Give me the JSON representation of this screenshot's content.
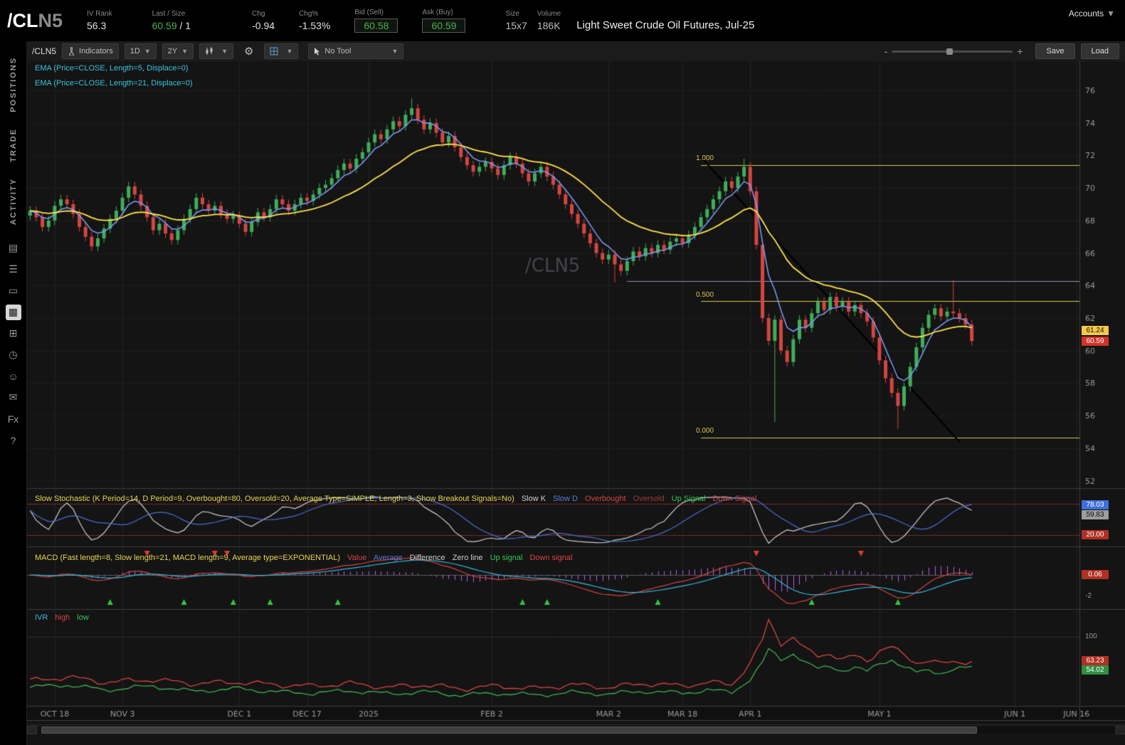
{
  "header": {
    "symbol_main": "/CL",
    "symbol_sub": "N5",
    "iv_rank_label": "IV Rank",
    "iv_rank": "56.3",
    "last_label": "Last / Size",
    "last": "60.59",
    "last_size": "/ 1",
    "chg_label": "Chg",
    "chg": "-0.94",
    "chgp_label": "Chg%",
    "chgp": "-1.53%",
    "bid_label": "Bid (Sell)",
    "bid": "60.58",
    "ask_label": "Ask (Buy)",
    "ask": "60.59",
    "size_label": "Size",
    "size": "15x7",
    "vol_label": "Volume",
    "volume": "186K",
    "description": "Light Sweet Crude Oil Futures, Jul-25",
    "accounts": "Accounts"
  },
  "sidebar": {
    "tabs": [
      {
        "label": "POSITIONS"
      },
      {
        "label": "TRADE"
      },
      {
        "label": "ACTIVITY"
      }
    ],
    "icons": [
      {
        "name": "scan-icon",
        "glyph": "▤"
      },
      {
        "name": "watchlist-icon",
        "glyph": "☰"
      },
      {
        "name": "tv-icon",
        "glyph": "▭"
      },
      {
        "name": "charts-icon",
        "glyph": "▦"
      },
      {
        "name": "widgets-icon",
        "glyph": "⊞"
      },
      {
        "name": "history-icon",
        "glyph": "◷"
      },
      {
        "name": "community-icon",
        "glyph": "☺"
      },
      {
        "name": "messages-icon",
        "glyph": "✉"
      },
      {
        "name": "forex-icon",
        "glyph": "Fx"
      },
      {
        "name": "help-icon",
        "glyph": "?"
      }
    ]
  },
  "toolbar": {
    "symbol": "/CLN5",
    "indicators": "Indicators",
    "timeframe": "1D",
    "range": "2Y",
    "tool": "No Tool",
    "zoom_minus": "-",
    "zoom_plus": "+",
    "save": "Save",
    "load": "Load"
  },
  "chart_data": {
    "type": "candlestick",
    "symbol": "/CLN5",
    "watermark": "/CLN5",
    "colors": {
      "up": "#3fae5a",
      "down": "#d64541",
      "ema5": "#7d9dfb",
      "ema21": "#ffe24a",
      "fib": "#d6c84f",
      "hline": "#8f9bac",
      "stoch_k": "#cfcfcf",
      "stoch_d": "#4a6fd4",
      "ob_os": "#7a2a2a",
      "macd_value": "#d64541",
      "macd_avg": "#35b8e0",
      "macd_hist": "#b35fe0",
      "ivr_high": "#d64541",
      "ivr_low": "#3cb054",
      "up_arrow": "#2bcc3e",
      "down_arrow": "#e03c31"
    },
    "legends": {
      "ema1": "EMA (Price=CLOSE, Length=5, Displace=0)",
      "ema2": "EMA (Price=CLOSE, Length=21, Displace=0)",
      "stoch_main": "Slow Stochastic (K Period=14, D Period=9, Overbought=80, Oversold=20, Average Type=SIMPLE, Length=3, Show Breakout Signals=No)",
      "stoch_k": "Slow K",
      "stoch_d": "Slow D",
      "stoch_ob": "Overbought",
      "stoch_os": "Oversold",
      "stoch_up": "Up Signal",
      "stoch_down": "Down Signal",
      "macd_main": "MACD (Fast length=8, Slow length=21, MACD length=9, Average type=EXPONENTIAL)",
      "macd_value": "Value",
      "macd_avg": "Average",
      "macd_diff": "Difference",
      "macd_zero": "Zero line",
      "macd_up": "Up signal",
      "macd_down": "Down signal",
      "ivr": "IVR",
      "ivr_high": "high",
      "ivr_low": "low"
    },
    "badges": {
      "ema21": "61.24",
      "last": "60.59",
      "stoch_d": "78.03",
      "stoch_k": "59.83",
      "stoch_os": "20.00",
      "macd": "0.06",
      "macd_tick": "-2",
      "ivr_tick": "100",
      "ivr_high": "63.23",
      "ivr_low": "54.02"
    },
    "price_panel": {
      "y_ticks": [
        76,
        74,
        72,
        70,
        68,
        66,
        64,
        62,
        60,
        58,
        56,
        54,
        52
      ],
      "ylim": [
        51.5,
        77.8
      ],
      "closes": [
        68.6,
        68.2,
        67.6,
        68.0,
        68.9,
        69.3,
        69.0,
        68.4,
        67.6,
        67.0,
        66.4,
        66.9,
        67.5,
        68.1,
        68.6,
        69.4,
        70.1,
        69.6,
        68.9,
        68.2,
        67.4,
        67.8,
        67.2,
        66.8,
        67.4,
        68.1,
        68.7,
        69.4,
        69.0,
        68.6,
        68.9,
        68.4,
        68.1,
        68.3,
        67.8,
        67.3,
        67.9,
        68.5,
        68.2,
        68.7,
        69.3,
        69.0,
        68.6,
        69.0,
        69.4,
        69.2,
        69.6,
        70.0,
        70.2,
        70.6,
        71.1,
        71.5,
        71.2,
        71.8,
        72.2,
        72.8,
        73.3,
        73.0,
        73.6,
        74.1,
        73.8,
        74.5,
        74.9,
        74.2,
        73.6,
        74.0,
        73.4,
        72.8,
        73.2,
        72.5,
        71.9,
        71.4,
        71.0,
        71.3,
        71.6,
        71.2,
        70.8,
        71.4,
        71.9,
        71.5,
        70.9,
        70.4,
        70.9,
        71.3,
        70.7,
        70.2,
        69.6,
        69.0,
        68.4,
        67.8,
        67.2,
        66.6,
        66.0,
        65.6,
        65.9,
        65.3,
        64.9,
        65.5,
        66.1,
        65.8,
        66.3,
        66.0,
        66.5,
        66.2,
        66.7,
        66.9,
        66.6,
        67.1,
        67.6,
        68.2,
        68.7,
        69.3,
        69.8,
        70.4,
        70.0,
        70.7,
        71.3,
        69.8,
        66.5,
        62.0,
        60.6,
        61.9,
        60.0,
        59.3,
        60.7,
        61.9,
        61.4,
        62.3,
        63.0,
        62.5,
        63.3,
        62.7,
        63.0,
        62.4,
        62.8,
        62.3,
        61.8,
        60.8,
        59.4,
        58.3,
        57.4,
        56.6,
        57.8,
        59.0,
        60.2,
        61.4,
        62.2,
        62.6,
        62.1,
        62.4,
        62.3,
        62.0,
        61.6,
        60.59
      ],
      "wick_overrides": [
        {
          "i": 62,
          "high": 75.5
        },
        {
          "i": 95,
          "low": 64.2
        },
        {
          "i": 116,
          "high": 71.8
        },
        {
          "i": 121,
          "low": 55.6
        },
        {
          "i": 141,
          "low": 55.2
        },
        {
          "i": 150,
          "high": 64.35
        }
      ],
      "ema_periods": [
        5,
        21
      ],
      "fib_levels": [
        {
          "label": "1.000",
          "price": 71.42
        },
        {
          "label": "0.500",
          "price": 63.03
        },
        {
          "label": "0.000",
          "price": 54.65
        }
      ],
      "fib_from_i": 109,
      "hline": {
        "price": 64.28,
        "from_i": 97
      },
      "trendline": {
        "i1": 109,
        "p1": 71.9,
        "i2": 151,
        "p2": 54.4
      }
    },
    "x_axis": {
      "total_slots": 171,
      "labels": [
        {
          "text": "OCT 18",
          "i": 4
        },
        {
          "text": "NOV 3",
          "i": 15
        },
        {
          "text": "DEC 1",
          "i": 34
        },
        {
          "text": "DEC 17",
          "i": 45
        },
        {
          "text": "2025",
          "i": 55
        },
        {
          "text": "FEB 2",
          "i": 75
        },
        {
          "text": "MAR 2",
          "i": 94
        },
        {
          "text": "MAR 18",
          "i": 106
        },
        {
          "text": "APR 1",
          "i": 117
        },
        {
          "text": "MAY 1",
          "i": 138
        },
        {
          "text": "JUN 1",
          "i": 160
        },
        {
          "text": "JUN 16",
          "i": 170
        }
      ]
    },
    "stoch": {
      "k_period": 14,
      "d_period": 9,
      "length": 3,
      "overbought": 80,
      "oversold": 20
    },
    "macd": {
      "fast": 8,
      "slow": 21,
      "signal": 9,
      "up_signals": [
        13,
        25,
        33,
        39,
        50,
        80,
        84,
        102,
        127,
        141
      ],
      "down_signals": [
        19,
        30,
        32,
        118,
        135
      ]
    },
    "ivr": {
      "high_anchors": [
        [
          0,
          32
        ],
        [
          6,
          38
        ],
        [
          12,
          30
        ],
        [
          20,
          34
        ],
        [
          26,
          28
        ],
        [
          34,
          30
        ],
        [
          40,
          26
        ],
        [
          46,
          24
        ],
        [
          52,
          28
        ],
        [
          58,
          22
        ],
        [
          64,
          26
        ],
        [
          70,
          20
        ],
        [
          76,
          24
        ],
        [
          82,
          20
        ],
        [
          88,
          26
        ],
        [
          94,
          22
        ],
        [
          100,
          28
        ],
        [
          106,
          24
        ],
        [
          110,
          30
        ],
        [
          114,
          26
        ],
        [
          117,
          60
        ],
        [
          119,
          95
        ],
        [
          120,
          125
        ],
        [
          122,
          90
        ],
        [
          124,
          100
        ],
        [
          126,
          80
        ],
        [
          128,
          70
        ],
        [
          130,
          75
        ],
        [
          132,
          65
        ],
        [
          134,
          70
        ],
        [
          136,
          62
        ],
        [
          138,
          80
        ],
        [
          140,
          85
        ],
        [
          142,
          70
        ],
        [
          144,
          60
        ],
        [
          146,
          65
        ],
        [
          148,
          58
        ],
        [
          150,
          60
        ],
        [
          153,
          63
        ]
      ],
      "low_anchors": [
        [
          0,
          22
        ],
        [
          6,
          26
        ],
        [
          12,
          18
        ],
        [
          20,
          24
        ],
        [
          26,
          16
        ],
        [
          34,
          20
        ],
        [
          40,
          15
        ],
        [
          46,
          13
        ],
        [
          52,
          17
        ],
        [
          58,
          12
        ],
        [
          64,
          15
        ],
        [
          70,
          10
        ],
        [
          76,
          13
        ],
        [
          82,
          10
        ],
        [
          88,
          14
        ],
        [
          94,
          12
        ],
        [
          100,
          16
        ],
        [
          106,
          13
        ],
        [
          110,
          18
        ],
        [
          114,
          14
        ],
        [
          117,
          35
        ],
        [
          119,
          60
        ],
        [
          120,
          80
        ],
        [
          122,
          65
        ],
        [
          124,
          75
        ],
        [
          126,
          60
        ],
        [
          128,
          50
        ],
        [
          130,
          55
        ],
        [
          132,
          48
        ],
        [
          134,
          52
        ],
        [
          136,
          46
        ],
        [
          138,
          60
        ],
        [
          140,
          65
        ],
        [
          142,
          52
        ],
        [
          144,
          45
        ],
        [
          146,
          50
        ],
        [
          148,
          44
        ],
        [
          150,
          48
        ],
        [
          153,
          54
        ]
      ]
    }
  }
}
